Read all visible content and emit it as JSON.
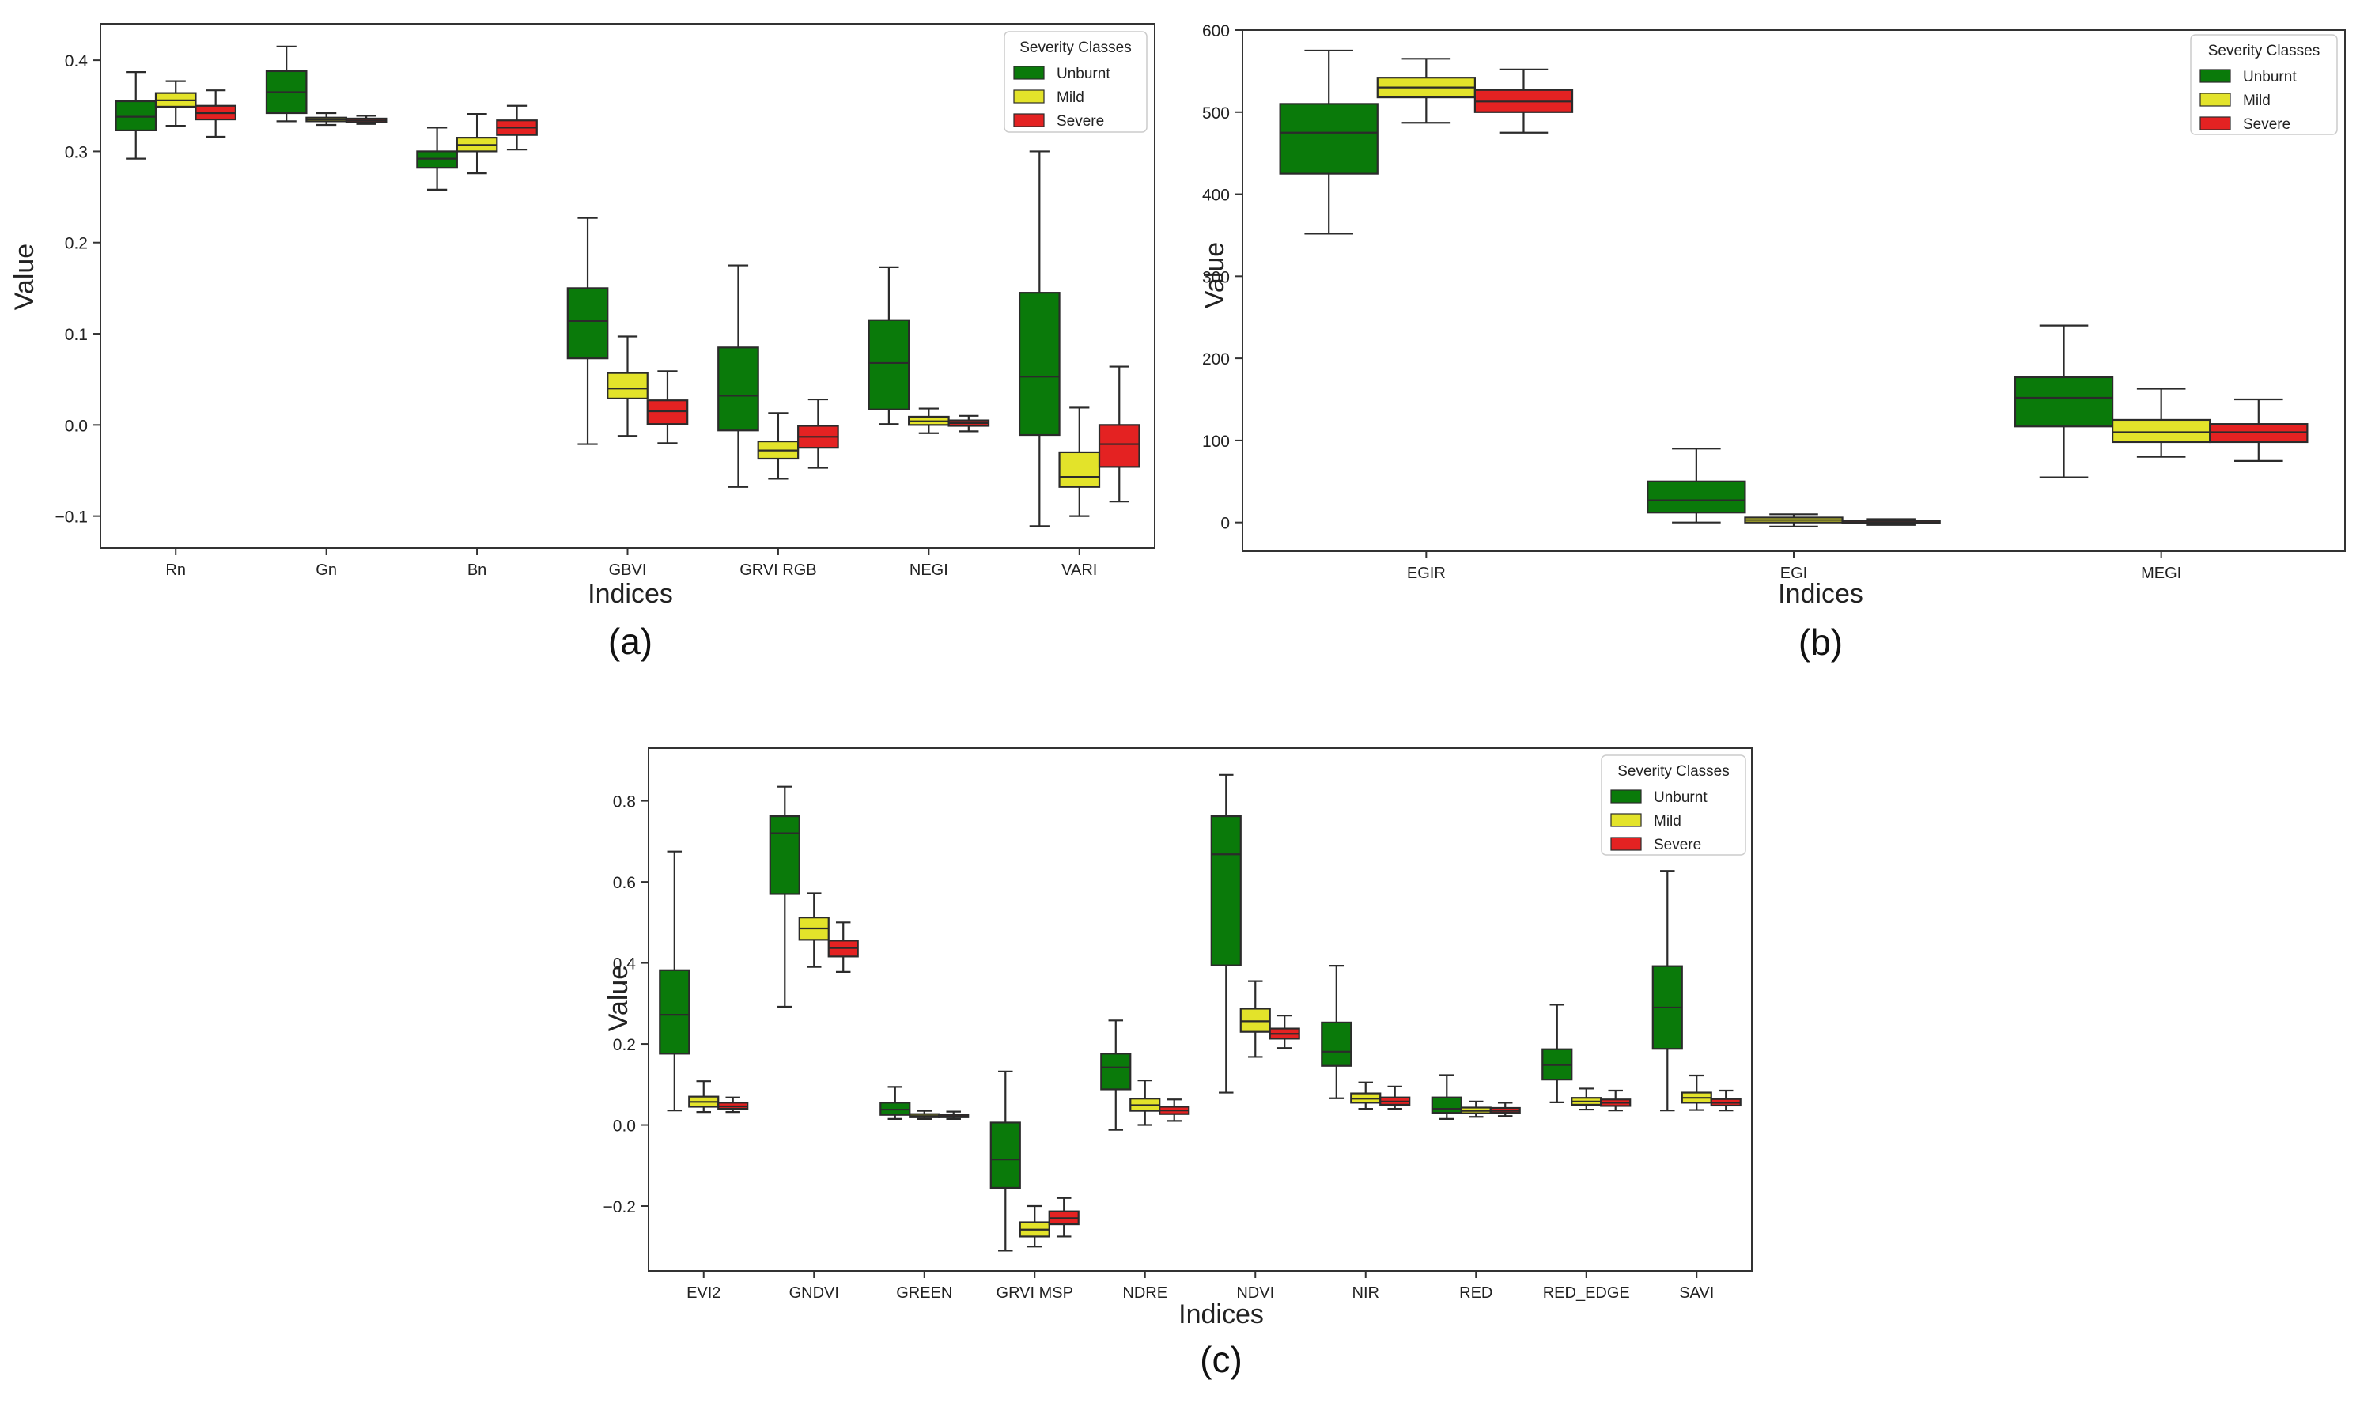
{
  "colors": {
    "Unburnt": "#0a7a0a",
    "Mild": "#e3e32a",
    "Severe": "#e42222",
    "box_edge": "#2b2b2b",
    "axis": "#333333"
  },
  "legend_title": "Severity Classes",
  "classes": [
    "Unburnt",
    "Mild",
    "Severe"
  ],
  "chart_data": [
    {
      "id": "a",
      "type": "boxplot",
      "caption": "(a)",
      "xlabel": "Indices",
      "ylabel": "Value",
      "ylim": [
        -0.135,
        0.44
      ],
      "yticks": [
        -0.1,
        0.0,
        0.1,
        0.2,
        0.3,
        0.4
      ],
      "ytick_labels": [
        "−0.1",
        "0.0",
        "0.1",
        "0.2",
        "0.3",
        "0.4"
      ],
      "legend_position": "top-right",
      "categories": [
        "Rn",
        "Gn",
        "Bn",
        "GBVI",
        "GRVI RGB",
        "NEGI",
        "VARI"
      ],
      "series": [
        {
          "name": "Unburnt",
          "boxes": [
            [
              0.292,
              0.323,
              0.338,
              0.355,
              0.387
            ],
            [
              0.333,
              0.342,
              0.365,
              0.388,
              0.415
            ],
            [
              0.258,
              0.282,
              0.292,
              0.3,
              0.326
            ],
            [
              -0.021,
              0.073,
              0.114,
              0.15,
              0.227
            ],
            [
              -0.068,
              -0.006,
              0.032,
              0.085,
              0.175
            ],
            [
              0.001,
              0.017,
              0.068,
              0.115,
              0.173
            ],
            [
              -0.111,
              -0.011,
              0.053,
              0.145,
              0.3
            ]
          ]
        },
        {
          "name": "Mild",
          "boxes": [
            [
              0.328,
              0.349,
              0.356,
              0.364,
              0.377
            ],
            [
              0.329,
              0.333,
              0.335,
              0.337,
              0.342
            ],
            [
              0.276,
              0.3,
              0.307,
              0.315,
              0.341
            ],
            [
              -0.012,
              0.029,
              0.04,
              0.057,
              0.097
            ],
            [
              -0.059,
              -0.037,
              -0.028,
              -0.018,
              0.013
            ],
            [
              -0.009,
              0.0,
              0.004,
              0.009,
              0.018
            ],
            [
              -0.1,
              -0.068,
              -0.057,
              -0.03,
              0.019
            ]
          ]
        },
        {
          "name": "Severe",
          "boxes": [
            [
              0.316,
              0.335,
              0.342,
              0.35,
              0.367
            ],
            [
              0.33,
              0.332,
              0.334,
              0.336,
              0.339
            ],
            [
              0.302,
              0.318,
              0.326,
              0.334,
              0.35
            ],
            [
              -0.02,
              0.001,
              0.015,
              0.027,
              0.059
            ],
            [
              -0.047,
              -0.025,
              -0.013,
              -0.001,
              0.028
            ],
            [
              -0.007,
              -0.001,
              0.002,
              0.005,
              0.01
            ],
            [
              -0.084,
              -0.046,
              -0.021,
              0.0,
              0.064
            ]
          ]
        }
      ]
    },
    {
      "id": "b",
      "type": "boxplot",
      "caption": "(b)",
      "xlabel": "Indices",
      "ylabel": "Value",
      "ylim": [
        -35,
        600
      ],
      "yticks": [
        0,
        100,
        200,
        300,
        400,
        500,
        600
      ],
      "ytick_labels": [
        "0",
        "100",
        "200",
        "300",
        "400",
        "500",
        "600"
      ],
      "legend_position": "top-right",
      "categories": [
        "EGIR",
        "EGI",
        "MEGI"
      ],
      "series": [
        {
          "name": "Unburnt",
          "boxes": [
            [
              352,
              425,
              475,
              510,
              575
            ],
            [
              0,
              12,
              27,
              50,
              90
            ],
            [
              55,
              117,
              152,
              177,
              240
            ]
          ]
        },
        {
          "name": "Mild",
          "boxes": [
            [
              487,
              518,
              530,
              542,
              565
            ],
            [
              -5,
              0,
              3,
              6,
              10
            ],
            [
              80,
              98,
              110,
              125,
              163
            ]
          ]
        },
        {
          "name": "Severe",
          "boxes": [
            [
              475,
              500,
              513,
              527,
              552
            ],
            [
              -3,
              -1,
              0,
              2,
              4
            ],
            [
              75,
              98,
              110,
              120,
              150
            ]
          ]
        }
      ]
    },
    {
      "id": "c",
      "type": "boxplot",
      "caption": "(c)",
      "xlabel": "Indices",
      "ylabel": "Value",
      "ylim": [
        -0.36,
        0.93
      ],
      "yticks": [
        -0.2,
        0.0,
        0.2,
        0.4,
        0.6,
        0.8
      ],
      "ytick_labels": [
        "−0.2",
        "0.0",
        "0.2",
        "0.4",
        "0.6",
        "0.8"
      ],
      "legend_position": "top-right",
      "categories": [
        "EVI2",
        "GNDVI",
        "GREEN",
        "GRVI MSP",
        "NDRE",
        "NDVI",
        "NIR",
        "RED",
        "RED_EDGE",
        "SAVI"
      ],
      "series": [
        {
          "name": "Unburnt",
          "boxes": [
            [
              0.036,
              0.176,
              0.272,
              0.382,
              0.675
            ],
            [
              0.292,
              0.57,
              0.72,
              0.762,
              0.835
            ],
            [
              0.015,
              0.025,
              0.038,
              0.055,
              0.094
            ],
            [
              -0.31,
              -0.155,
              -0.085,
              0.006,
              0.132
            ],
            [
              -0.012,
              0.088,
              0.142,
              0.176,
              0.258
            ],
            [
              0.08,
              0.394,
              0.668,
              0.762,
              0.864
            ],
            [
              0.066,
              0.146,
              0.181,
              0.253,
              0.393
            ],
            [
              0.015,
              0.03,
              0.04,
              0.068,
              0.123
            ],
            [
              0.056,
              0.112,
              0.148,
              0.187,
              0.297
            ],
            [
              0.036,
              0.188,
              0.29,
              0.392,
              0.627
            ]
          ]
        },
        {
          "name": "Mild",
          "boxes": [
            [
              0.032,
              0.045,
              0.057,
              0.07,
              0.108
            ],
            [
              0.39,
              0.457,
              0.485,
              0.512,
              0.572
            ],
            [
              0.015,
              0.019,
              0.022,
              0.027,
              0.035
            ],
            [
              -0.3,
              -0.275,
              -0.258,
              -0.24,
              -0.2
            ],
            [
              0.0,
              0.035,
              0.049,
              0.065,
              0.11
            ],
            [
              0.168,
              0.23,
              0.256,
              0.287,
              0.355
            ],
            [
              0.04,
              0.055,
              0.065,
              0.078,
              0.105
            ],
            [
              0.02,
              0.029,
              0.035,
              0.043,
              0.058
            ],
            [
              0.038,
              0.05,
              0.058,
              0.067,
              0.09
            ],
            [
              0.037,
              0.055,
              0.067,
              0.08,
              0.122
            ]
          ]
        },
        {
          "name": "Severe",
          "boxes": [
            [
              0.032,
              0.04,
              0.046,
              0.055,
              0.068
            ],
            [
              0.378,
              0.416,
              0.437,
              0.455,
              0.5
            ],
            [
              0.015,
              0.019,
              0.022,
              0.026,
              0.033
            ],
            [
              -0.275,
              -0.245,
              -0.23,
              -0.213,
              -0.18
            ],
            [
              0.01,
              0.027,
              0.036,
              0.045,
              0.063
            ],
            [
              0.19,
              0.213,
              0.225,
              0.238,
              0.27
            ],
            [
              0.04,
              0.05,
              0.058,
              0.068,
              0.095
            ],
            [
              0.022,
              0.03,
              0.035,
              0.042,
              0.055
            ],
            [
              0.036,
              0.047,
              0.055,
              0.063,
              0.085
            ],
            [
              0.036,
              0.048,
              0.055,
              0.064,
              0.085
            ]
          ]
        }
      ]
    }
  ]
}
